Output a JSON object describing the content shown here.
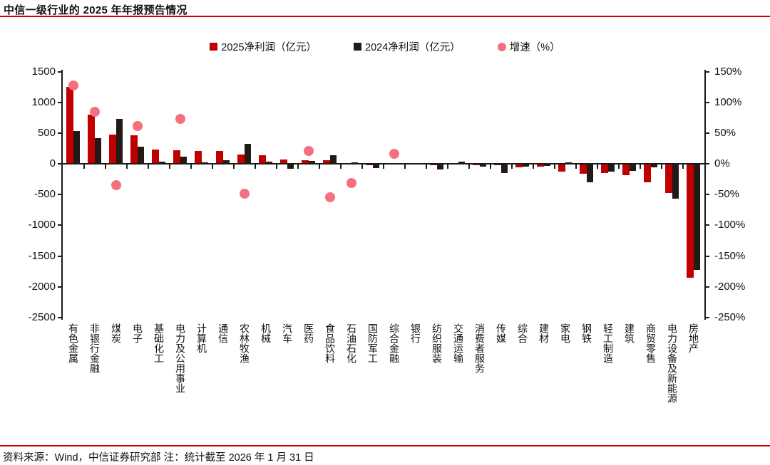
{
  "page": {
    "title": "中信一级行业的 2025 年年报预告情况",
    "footer": "资料来源：Wind，中信证券研究部  注：统计截至 2026 年 1 月 31 日"
  },
  "colors": {
    "bar_2025": "#c00000",
    "bar_2024": "#231916",
    "growth_dot": "#f4707e",
    "rule_red": "#d40000",
    "axis_black": "#1a1a1a"
  },
  "legend": {
    "items": [
      {
        "label": "2025净利润（亿元）",
        "marker": "square",
        "color": "#c00000"
      },
      {
        "label": "2024净利润（亿元）",
        "marker": "square",
        "color": "#231916"
      },
      {
        "label": "增速（%）",
        "marker": "circle",
        "color": "#f4707e"
      }
    ]
  },
  "chart_data": {
    "type": "bar",
    "title": "中信一级行业的 2025 年年报预告情况",
    "legend_position": "top",
    "grid": false,
    "categories": [
      "有色金属",
      "非银行金融",
      "煤炭",
      "电子",
      "基础化工",
      "电力及公用事业",
      "计算机",
      "通信",
      "农林牧渔",
      "机械",
      "汽车",
      "医药",
      "食品饮料",
      "石油石化",
      "国防军工",
      "综合金融",
      "银行",
      "纺织服装",
      "交通运输",
      "消费者服务",
      "传媒",
      "综合",
      "建材",
      "家电",
      "钢铁",
      "轻工制造",
      "建筑",
      "商贸零售",
      "电力设备及新能源",
      "房地产"
    ],
    "series": [
      {
        "name": "2025净利润（亿元）",
        "type": "bar",
        "axis": "left",
        "values": [
          1255,
          800,
          480,
          468,
          230,
          225,
          210,
          205,
          155,
          145,
          75,
          60,
          62,
          18,
          -15,
          12,
          5,
          -15,
          5,
          -15,
          -20,
          -55,
          -50,
          -130,
          -165,
          -145,
          -185,
          -305,
          -475,
          -1850
        ]
      },
      {
        "name": "2024净利润（亿元）",
        "type": "bar",
        "axis": "left",
        "values": [
          530,
          415,
          730,
          282,
          40,
          118,
          25,
          60,
          325,
          40,
          -75,
          45,
          145,
          25,
          -70,
          10,
          4,
          -95,
          35,
          -50,
          -145,
          -45,
          -35,
          30,
          -300,
          -120,
          -110,
          -60,
          -565,
          -1730
        ]
      },
      {
        "name": "增速（%）",
        "type": "scatter",
        "axis": "right",
        "values": [
          128,
          85,
          -35,
          62,
          null,
          73,
          null,
          null,
          -49,
          null,
          null,
          21,
          -54,
          -31,
          null,
          16,
          null,
          null,
          null,
          null,
          null,
          null,
          null,
          null,
          null,
          null,
          null,
          null,
          null,
          null
        ]
      }
    ],
    "left_axis": {
      "label": "",
      "min": -2500,
      "max": 1500,
      "step": 500,
      "ticks": [
        "1500",
        "1000",
        "500",
        "0",
        "-500",
        "-1000",
        "-1500",
        "-2000",
        "-2500"
      ]
    },
    "right_axis": {
      "label": "",
      "min": -250,
      "max": 150,
      "step": 50,
      "ticks": [
        "150%",
        "100%",
        "50%",
        "0%",
        "-50%",
        "-100%",
        "-150%",
        "-200%",
        "-250%"
      ]
    }
  }
}
